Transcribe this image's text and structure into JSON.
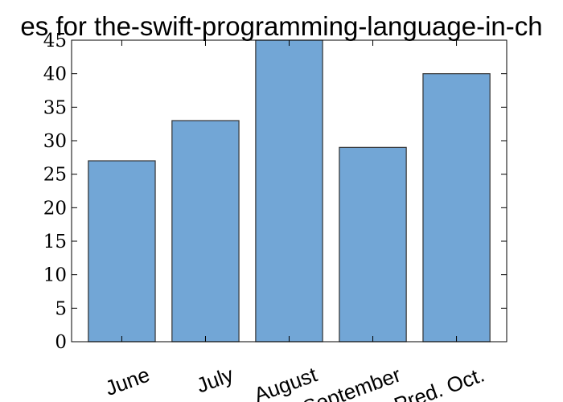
{
  "chart_data": {
    "type": "bar",
    "title": "es for the-swift-programming-language-in-ch",
    "xlabel": "",
    "ylabel": "",
    "categories": [
      "June",
      "July",
      "August",
      "September",
      "Pred. Oct."
    ],
    "values": [
      27,
      33,
      45,
      29,
      40
    ],
    "ylim": [
      0,
      45
    ],
    "yticks": [
      "0",
      "5",
      "10",
      "15",
      "20",
      "25",
      "30",
      "35",
      "40",
      "45"
    ],
    "bar_color": "#72a6d6",
    "bar_edge_color": "#333333",
    "grid": false,
    "legend": "none"
  }
}
